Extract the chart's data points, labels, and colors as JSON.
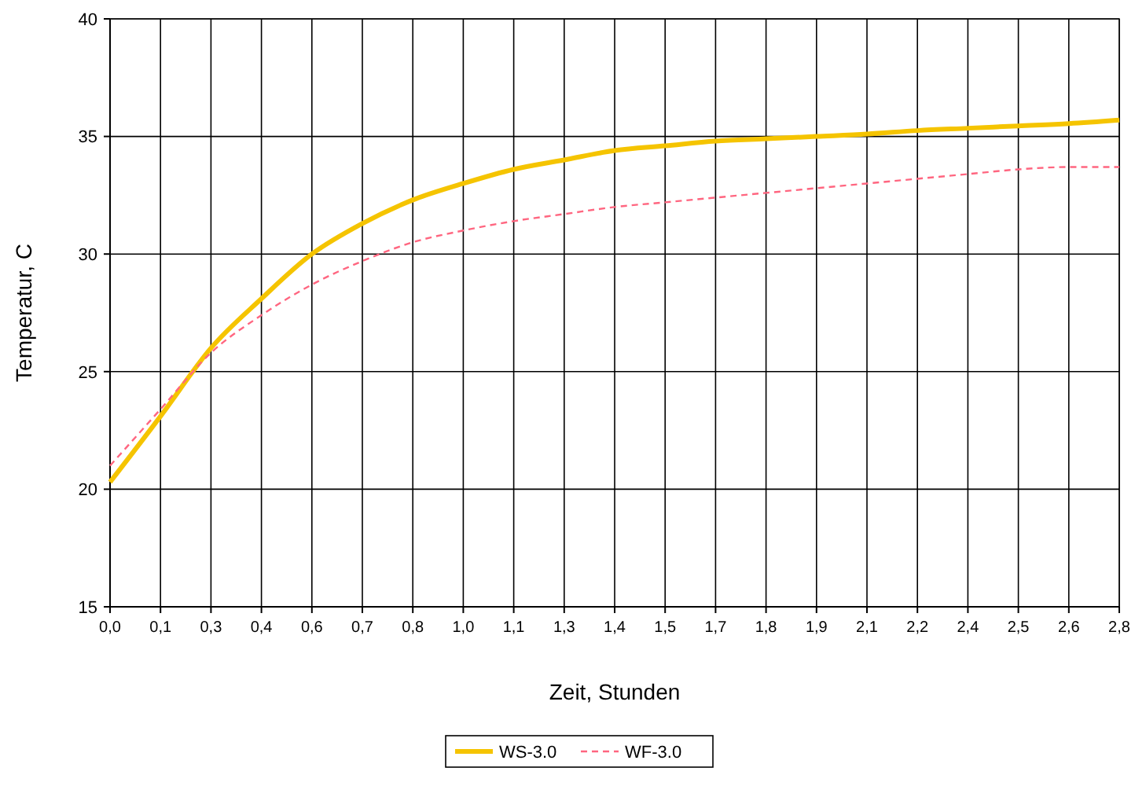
{
  "chart_data": {
    "type": "line",
    "xlabel": "Zeit, Stunden",
    "ylabel": "Temperatur, C",
    "categories": [
      "0,0",
      "0,1",
      "0,3",
      "0,4",
      "0,6",
      "0,7",
      "0,8",
      "1,0",
      "1,1",
      "1,3",
      "1,4",
      "1,5",
      "1,7",
      "1,8",
      "1,9",
      "2,1",
      "2,2",
      "2,4",
      "2,5",
      "2,6",
      "2,8"
    ],
    "series": [
      {
        "name": "WS-3.0",
        "color": "#f5c400",
        "line_style": "solid",
        "values": [
          20.3,
          23.1,
          26.0,
          28.1,
          30.0,
          31.3,
          32.3,
          33.0,
          33.6,
          34.0,
          34.4,
          34.6,
          34.8,
          34.9,
          35.0,
          35.1,
          35.25,
          35.35,
          35.45,
          35.55,
          35.7
        ]
      },
      {
        "name": "WF-3.0",
        "color": "#ff6680",
        "line_style": "dashed",
        "values": [
          21.0,
          23.4,
          25.8,
          27.4,
          28.7,
          29.7,
          30.5,
          31.0,
          31.4,
          31.7,
          32.0,
          32.2,
          32.4,
          32.6,
          32.8,
          33.0,
          33.2,
          33.4,
          33.6,
          33.7,
          33.7
        ]
      }
    ],
    "ylim": [
      15,
      40
    ],
    "yticks": [
      15,
      20,
      25,
      30,
      35,
      40
    ],
    "grid": true,
    "legend": "bottom",
    "marker": "none"
  }
}
